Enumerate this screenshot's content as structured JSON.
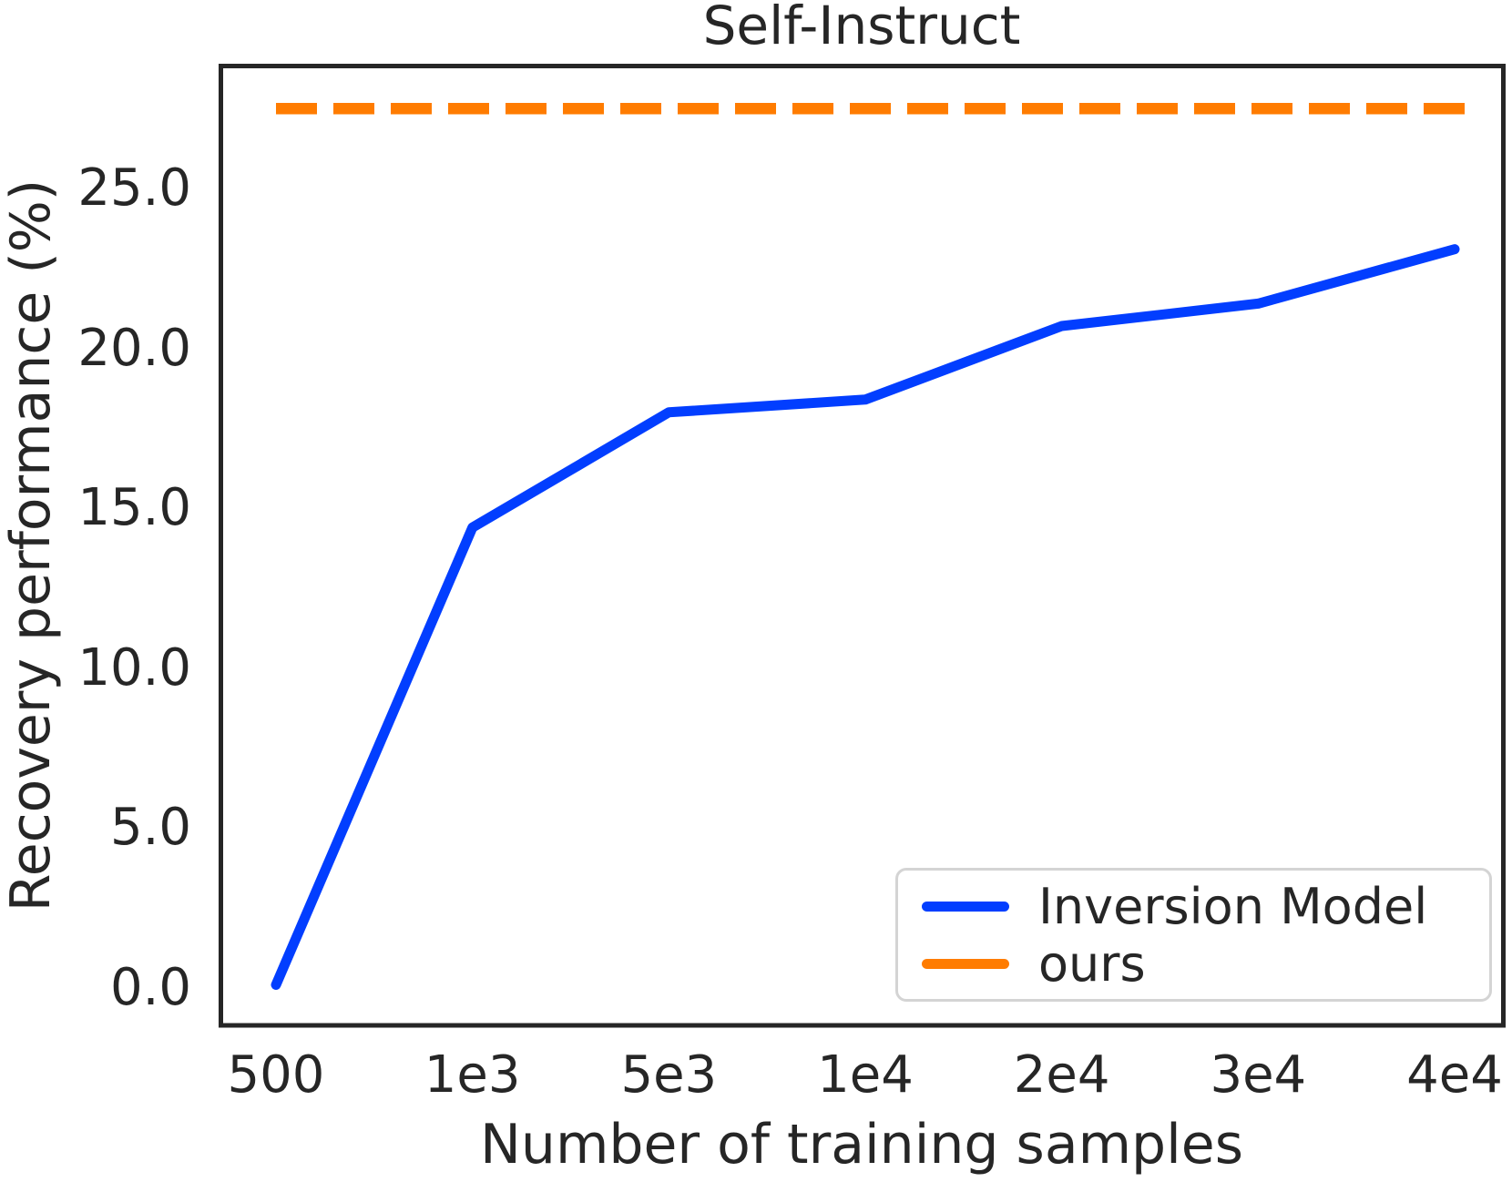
{
  "chart_data": {
    "type": "line",
    "title": "Self-Instruct",
    "xlabel": "Number of training samples",
    "ylabel": "Recovery performance (%)",
    "categories": [
      "500",
      "1e3",
      "5e3",
      "1e4",
      "2e4",
      "3e4",
      "4e4"
    ],
    "x_tick_labels": [
      "500",
      "1e3",
      "5e3",
      "1e4",
      "2e4",
      "3e4",
      "4e4"
    ],
    "y_tick_labels": [
      "0.0",
      "5.0",
      "10.0",
      "15.0",
      "20.0",
      "25.0"
    ],
    "y_tick_values": [
      0,
      5,
      10,
      15,
      20,
      25
    ],
    "ylim": [
      -1.2,
      28.9
    ],
    "grid": false,
    "legend": {
      "position": "lower right",
      "entries": [
        "Inversion Model",
        "ours"
      ]
    },
    "series": [
      {
        "name": "Inversion Model",
        "color": "#023EFF",
        "line_style": "solid",
        "values": [
          0.1,
          14.4,
          18.0,
          18.4,
          20.7,
          21.4,
          23.1
        ]
      },
      {
        "name": "ours",
        "color": "#FF7C00",
        "line_style": "dashed",
        "constant_value": 27.5,
        "values": [
          27.5,
          27.5,
          27.5,
          27.5,
          27.5,
          27.5,
          27.5
        ]
      }
    ]
  }
}
